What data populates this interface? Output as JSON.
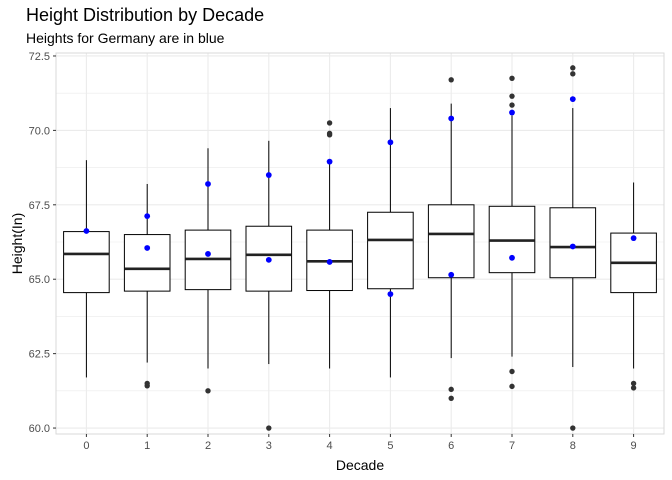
{
  "chart_data": {
    "type": "box",
    "title": "Height Distribution by Decade",
    "subtitle": "Heights for Germany are in blue",
    "xlabel": "Decade",
    "ylabel": "Height(In)",
    "ylim": [
      59.8,
      72.6
    ],
    "yticks": [
      60.0,
      62.5,
      65.0,
      67.5,
      70.0,
      72.5
    ],
    "ytick_labels": [
      "60.0",
      "62.5",
      "65.0",
      "67.5",
      "70.0",
      "72.5"
    ],
    "categories": [
      "0",
      "1",
      "2",
      "3",
      "4",
      "5",
      "6",
      "7",
      "8",
      "9"
    ],
    "grid": true,
    "colors": {
      "box": "#000000",
      "outlier": "#333333",
      "highlight": "#0000ff",
      "grid": "#ebebeb",
      "panel_border": "#d9d9d9"
    },
    "boxes": [
      {
        "category": "0",
        "whisker_low": 61.7,
        "q1": 64.55,
        "median": 65.85,
        "q3": 66.6,
        "whisker_high": 69.0,
        "outliers": [],
        "highlight": [
          66.62
        ]
      },
      {
        "category": "1",
        "whisker_low": 62.2,
        "q1": 64.6,
        "median": 65.35,
        "q3": 66.5,
        "whisker_high": 68.2,
        "outliers": [
          61.5,
          61.42
        ],
        "highlight": [
          66.05,
          67.12
        ]
      },
      {
        "category": "2",
        "whisker_low": 62.0,
        "q1": 64.65,
        "median": 65.68,
        "q3": 66.65,
        "whisker_high": 69.4,
        "outliers": [
          61.25
        ],
        "highlight": [
          68.2,
          65.85
        ]
      },
      {
        "category": "3",
        "whisker_low": 62.15,
        "q1": 64.6,
        "median": 65.82,
        "q3": 66.78,
        "whisker_high": 69.65,
        "outliers": [
          60.0
        ],
        "highlight": [
          68.5,
          65.65
        ]
      },
      {
        "category": "4",
        "whisker_low": 62.0,
        "q1": 64.62,
        "median": 65.6,
        "q3": 66.65,
        "whisker_high": 68.95,
        "outliers": [
          69.85,
          69.9,
          70.25
        ],
        "highlight": [
          68.95,
          65.58
        ]
      },
      {
        "category": "5",
        "whisker_low": 61.7,
        "q1": 64.68,
        "median": 66.32,
        "q3": 67.25,
        "whisker_high": 70.75,
        "outliers": [],
        "highlight": [
          69.6,
          64.5
        ]
      },
      {
        "category": "6",
        "whisker_low": 62.35,
        "q1": 65.05,
        "median": 66.52,
        "q3": 67.5,
        "whisker_high": 70.9,
        "outliers": [
          71.7,
          61.3,
          61.0
        ],
        "highlight": [
          70.4,
          65.15
        ]
      },
      {
        "category": "7",
        "whisker_low": 62.4,
        "q1": 65.22,
        "median": 66.3,
        "q3": 67.45,
        "whisker_high": 70.5,
        "outliers": [
          71.75,
          71.15,
          70.85,
          61.9,
          61.4
        ],
        "highlight": [
          70.6,
          65.72
        ]
      },
      {
        "category": "8",
        "whisker_low": 62.05,
        "q1": 65.05,
        "median": 66.08,
        "q3": 67.4,
        "whisker_high": 70.75,
        "outliers": [
          72.1,
          71.9,
          71.05,
          60.0
        ],
        "highlight": [
          71.05,
          66.1
        ]
      },
      {
        "category": "9",
        "whisker_low": 62.0,
        "q1": 64.55,
        "median": 65.55,
        "q3": 66.55,
        "whisker_high": 68.25,
        "outliers": [
          61.5,
          61.35
        ],
        "highlight": [
          66.38
        ]
      }
    ]
  }
}
